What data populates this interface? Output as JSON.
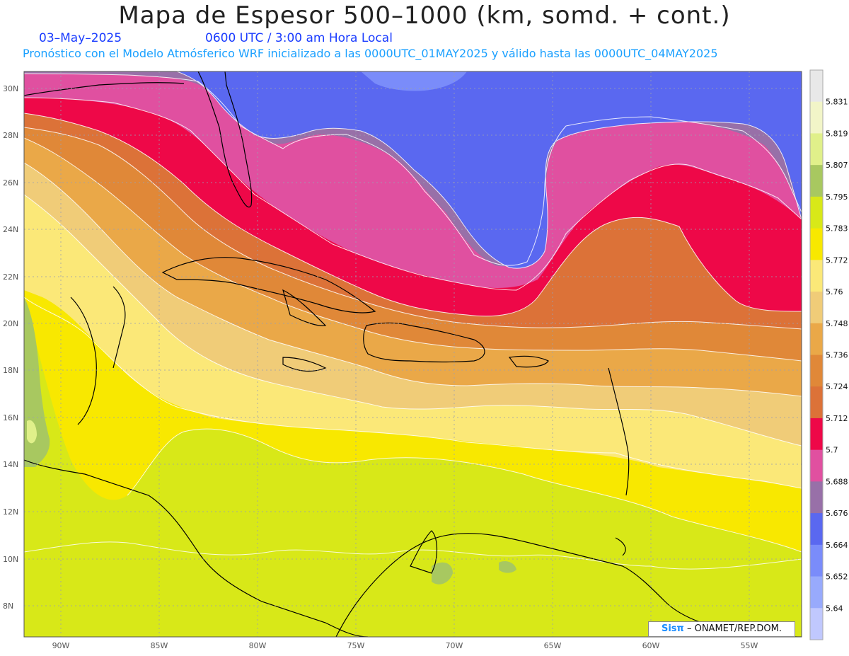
{
  "title": "Mapa de Espesor 500–1000 (km, somd. + cont.)",
  "date": "03–May–2025",
  "time": "0600 UTC / 3:00 am Hora Local",
  "model_info": "Pronóstico con el Modelo Atmósferico WRF inicializado a las 0000UTC_01MAY2025 y válido hasta las  0000UTC_04MAY2025",
  "credit": {
    "brand": "Sisπ",
    "org": "– ONAMET/REP.DOM."
  },
  "axes": {
    "lat_labels": [
      "30N",
      "28N",
      "26N",
      "24N",
      "22N",
      "20N",
      "18N",
      "16N",
      "14N",
      "12N",
      "10N",
      "8N"
    ],
    "lon_labels": [
      "90W",
      "85W",
      "80W",
      "75W",
      "70W",
      "65W",
      "60W",
      "55W"
    ]
  },
  "colorbar": {
    "levels": [
      "5.831",
      "5.819",
      "5.807",
      "5.795",
      "5.783",
      "5.772",
      "5.76",
      "5.748",
      "5.736",
      "5.724",
      "5.712",
      "5.7",
      "5.688",
      "5.676",
      "5.664",
      "5.652",
      "5.64"
    ],
    "colors": [
      "#e8e8e8",
      "#f2f5c8",
      "#e0f08a",
      "#a8c860",
      "#d8e818",
      "#f8e800",
      "#fbe878",
      "#f0cc78",
      "#eaa848",
      "#e08838",
      "#dc7238",
      "#ee0848",
      "#e050a0",
      "#9870a8",
      "#5a68f0",
      "#7a8cfa",
      "#98aafc",
      "#c0c8fe"
    ]
  },
  "map_colors": {
    "ocean_deep_blue": "#5a68f0",
    "light_blue": "#7a8cfa",
    "purple": "#9870a8",
    "pink": "#e050a0",
    "red": "#ee0848",
    "dark_orange": "#dc7238",
    "orange": "#e08838",
    "light_orange": "#eaa848",
    "tan": "#f0cc78",
    "pale_yellow": "#fbe878",
    "yellow": "#f8e800",
    "yellow_green": "#d8e818",
    "green": "#a8c860"
  }
}
